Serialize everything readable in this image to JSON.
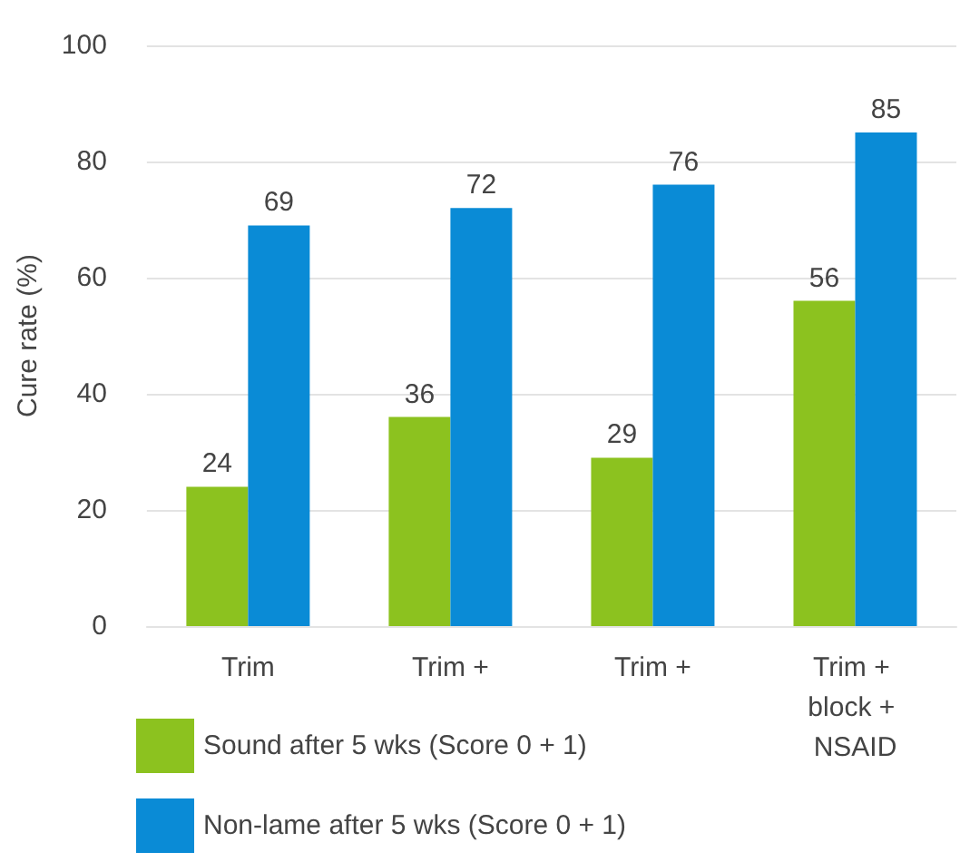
{
  "chart_data": {
    "type": "bar",
    "ylabel": "Cure rate (%)",
    "categories": [
      "Trim",
      "Trim +",
      "Trim +",
      "Trim + block + NSAID"
    ],
    "series": [
      {
        "name": "Sound after 5 wks (Score 0 + 1)",
        "color": "#8cc21f",
        "values": [
          24,
          36,
          29,
          56
        ]
      },
      {
        "name": "Non-lame after 5 wks (Score 0 + 1)",
        "color": "#0a8bd6",
        "values": [
          69,
          72,
          76,
          85
        ]
      }
    ],
    "ylim": [
      0,
      100
    ],
    "yticks": [
      0,
      20,
      40,
      60,
      80,
      100
    ],
    "grid": "y",
    "legend": "bottom",
    "data_labels": true
  }
}
